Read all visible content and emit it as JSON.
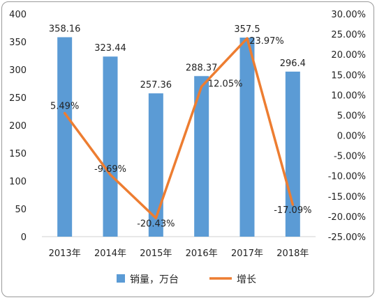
{
  "chart_data": {
    "type": "bar+line",
    "categories": [
      "2013年",
      "2014年",
      "2015年",
      "2016年",
      "2017年",
      "2018年"
    ],
    "series": [
      {
        "name": "销量，万台",
        "type": "bar",
        "axis": "left",
        "values": [
          358.16,
          323.44,
          257.36,
          288.37,
          357.5,
          296.4
        ],
        "labels": [
          "358.16",
          "323.44",
          "257.36",
          "288.37",
          "357.5",
          "296.4"
        ],
        "color": "#5b9bd5"
      },
      {
        "name": "增长",
        "type": "line",
        "axis": "right",
        "values": [
          5.49,
          -9.69,
          -20.43,
          12.05,
          23.97,
          -17.09
        ],
        "labels": [
          "5.49%",
          "-9.69%",
          "-20.43%",
          "12.05%",
          "23.97%",
          "-17.09%"
        ],
        "color": "#ed7d31"
      }
    ],
    "y_left": {
      "range": [
        0,
        400
      ],
      "ticks": [
        "0",
        "50",
        "100",
        "150",
        "200",
        "250",
        "300",
        "350",
        "400"
      ]
    },
    "y_right": {
      "range": [
        -25,
        30
      ],
      "ticks": [
        "-25.00%",
        "-20.00%",
        "-15.00%",
        "-10.00%",
        "-5.00%",
        "0.00%",
        "5.00%",
        "10.00%",
        "15.00%",
        "20.00%",
        "25.00%",
        "30.00%"
      ]
    },
    "grid": false,
    "legend_position": "bottom"
  }
}
